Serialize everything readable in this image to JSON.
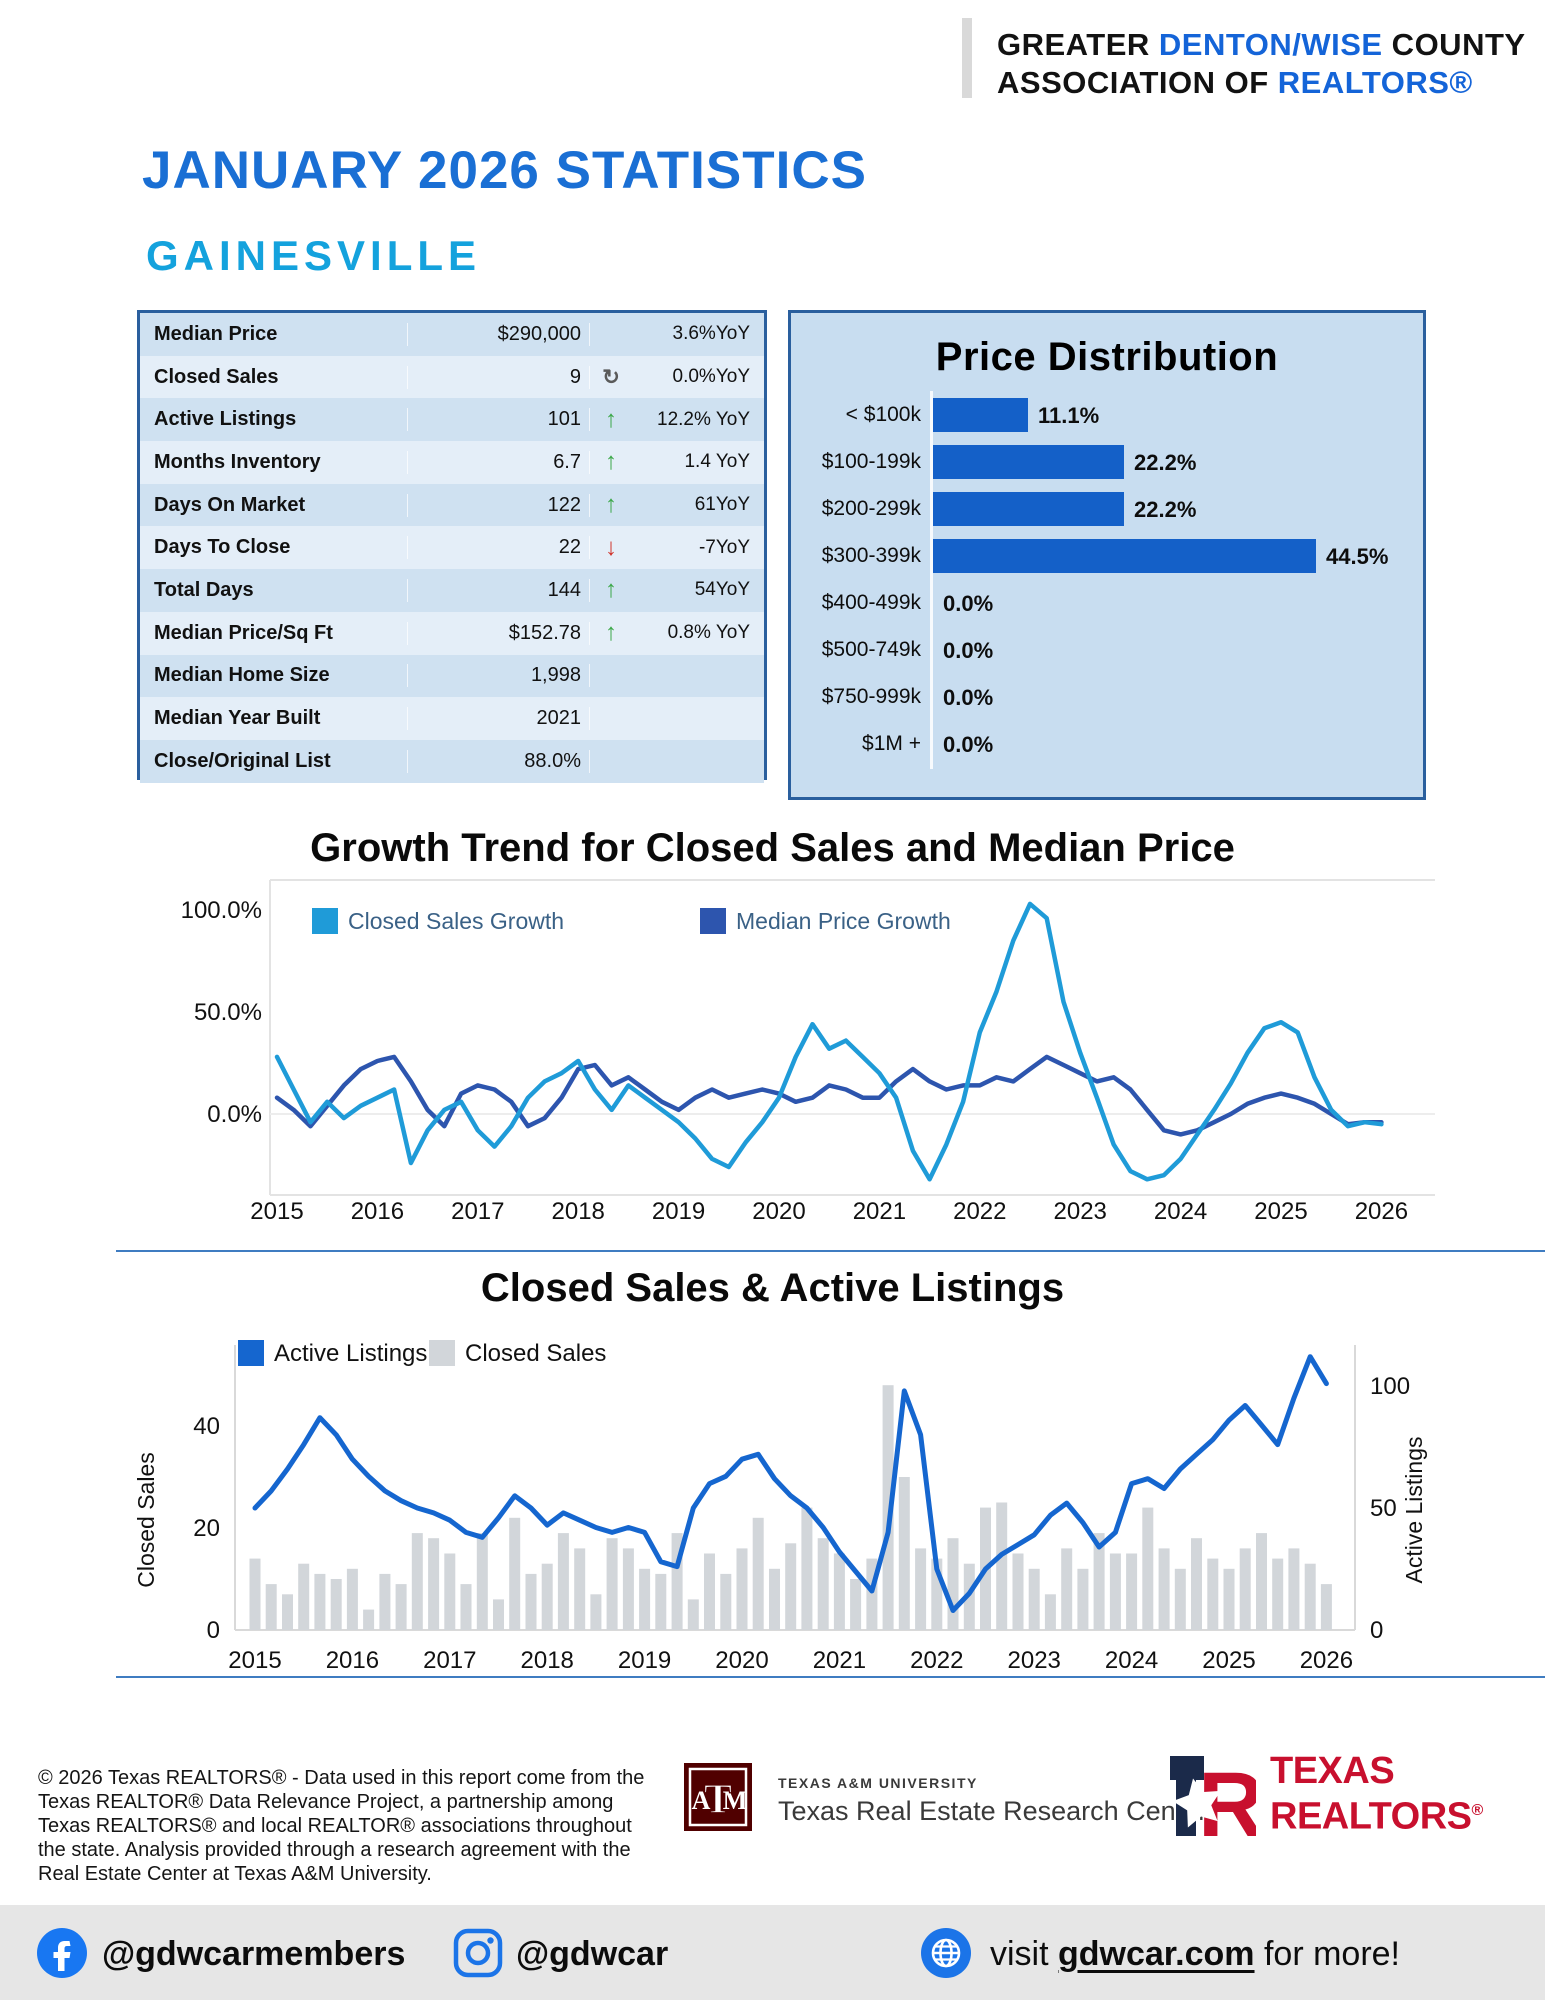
{
  "header": {
    "line1_prefix": "GREATER ",
    "line1_highlight": "DENTON/WISE",
    "line1_suffix": " COUNTY",
    "line2_prefix": "ASSOCIATION OF ",
    "line2_highlight": "REALTORS®"
  },
  "page_title": "JANUARY 2026 STATISTICS",
  "city": "GAINESVILLE",
  "stats_table": {
    "rows": [
      {
        "label": "Median Price",
        "value": "$290,000",
        "trend": "none",
        "yoy": "3.6%YoY"
      },
      {
        "label": "Closed Sales",
        "value": "9",
        "trend": "flat",
        "yoy": "0.0%YoY"
      },
      {
        "label": "Active Listings",
        "value": "101",
        "trend": "up",
        "yoy": "12.2% YoY"
      },
      {
        "label": "Months Inventory",
        "value": "6.7",
        "trend": "up",
        "yoy": "1.4 YoY"
      },
      {
        "label": "Days On Market",
        "value": "122",
        "trend": "up",
        "yoy": "61YoY"
      },
      {
        "label": "Days To Close",
        "value": "22",
        "trend": "down",
        "yoy": "-7YoY"
      },
      {
        "label": "Total Days",
        "value": "144",
        "trend": "up",
        "yoy": "54YoY"
      },
      {
        "label": "Median Price/Sq Ft",
        "value": "$152.78",
        "trend": "up",
        "yoy": "0.8% YoY"
      },
      {
        "label": "Median Home Size",
        "value": "1,998",
        "trend": "none",
        "yoy": ""
      },
      {
        "label": "Median Year Built",
        "value": "2021",
        "trend": "none",
        "yoy": ""
      },
      {
        "label": "Close/Original List",
        "value": "88.0%",
        "trend": "none",
        "yoy": ""
      }
    ]
  },
  "chart_data": [
    {
      "id": "price_distribution",
      "type": "bar",
      "title": "Price Distribution",
      "orientation": "horizontal",
      "categories": [
        "< $100k",
        "$100-199k",
        "$200-299k",
        "$300-399k",
        "$400-499k",
        "$500-749k",
        "$750-999k",
        "$1M +"
      ],
      "values": [
        11.1,
        22.2,
        22.2,
        44.5,
        0.0,
        0.0,
        0.0,
        0.0
      ],
      "labels": [
        "11.1%",
        "22.2%",
        "22.2%",
        "44.5%",
        "0.0%",
        "0.0%",
        "0.0%",
        "0.0%"
      ],
      "bar_color": "#1460c8",
      "xlim": [
        0,
        50
      ]
    },
    {
      "id": "growth",
      "type": "line",
      "title": "Growth Trend for Closed Sales and Median Price",
      "x_start": 2015,
      "x_step_months": 2,
      "x_ticks": [
        2015,
        2016,
        2017,
        2018,
        2019,
        2020,
        2021,
        2022,
        2023,
        2024,
        2025,
        2026
      ],
      "y_tick_labels": [
        "100.0%",
        "50.0%",
        "0.0%"
      ],
      "y_tick_values": [
        100,
        50,
        0
      ],
      "ylim": [
        -40,
        115
      ],
      "grid": "zero-line",
      "legend_position": "top-left",
      "series": [
        {
          "name": "Median Price Growth",
          "color": "#2d55ae",
          "values": [
            8,
            2,
            -6,
            4,
            14,
            22,
            26,
            28,
            16,
            2,
            -6,
            10,
            14,
            12,
            6,
            -6,
            -2,
            8,
            22,
            24,
            14,
            18,
            12,
            6,
            2,
            8,
            12,
            8,
            10,
            12,
            10,
            6,
            8,
            14,
            12,
            8,
            8,
            16,
            22,
            16,
            12,
            14,
            14,
            18,
            16,
            22,
            28,
            24,
            20,
            16,
            18,
            12,
            2,
            -8,
            -10,
            -8,
            -4,
            0,
            5,
            8,
            10,
            8,
            5,
            0,
            -5,
            -4,
            -4
          ]
        },
        {
          "name": "Closed Sales Growth",
          "color": "#1f9bd8",
          "values": [
            28,
            12,
            -4,
            6,
            -2,
            4,
            8,
            12,
            -24,
            -8,
            2,
            6,
            -8,
            -16,
            -6,
            8,
            16,
            20,
            26,
            12,
            2,
            14,
            8,
            2,
            -4,
            -12,
            -22,
            -26,
            -14,
            -4,
            8,
            28,
            44,
            32,
            36,
            28,
            20,
            8,
            -18,
            -32,
            -15,
            6,
            40,
            60,
            85,
            103,
            96,
            55,
            30,
            8,
            -15,
            -28,
            -32,
            -30,
            -22,
            -10,
            2,
            15,
            30,
            42,
            45,
            40,
            18,
            2,
            -6,
            -4,
            -5
          ]
        }
      ]
    },
    {
      "id": "sales_listings",
      "type": "bar",
      "subtype": "bar+line dual axis",
      "title": "Closed Sales & Active Listings",
      "x_start": 2015,
      "x_step_months": 2,
      "x_ticks": [
        2015,
        2016,
        2017,
        2018,
        2019,
        2020,
        2021,
        2022,
        2023,
        2024,
        2025,
        2026
      ],
      "left_axis": {
        "label": "Closed Sales",
        "ticks": [
          0,
          20,
          40
        ],
        "lim": [
          0,
          56
        ]
      },
      "right_axis": {
        "label": "Active Listings",
        "ticks": [
          0,
          50,
          100
        ],
        "lim": [
          0,
          117
        ]
      },
      "legend_position": "top-left",
      "series": [
        {
          "name": "Active Listings",
          "render": "line",
          "axis": "right",
          "color": "#1566cf",
          "values": [
            50,
            57,
            66,
            76,
            87,
            80,
            70,
            63,
            57,
            53,
            50,
            48,
            45,
            40,
            38,
            46,
            55,
            50,
            43,
            48,
            45,
            42,
            40,
            42,
            40,
            28,
            26,
            50,
            60,
            63,
            70,
            72,
            62,
            55,
            50,
            42,
            32,
            24,
            16,
            40,
            98,
            80,
            25,
            8,
            15,
            25,
            31,
            35,
            39,
            47,
            52,
            44,
            34,
            40,
            60,
            62,
            58,
            66,
            72,
            78,
            86,
            92,
            84,
            76,
            95,
            112,
            101
          ]
        },
        {
          "name": "Closed Sales",
          "render": "bar",
          "axis": "left",
          "color": "#d2d6da",
          "values": [
            14,
            9,
            7,
            13,
            11,
            10,
            12,
            4,
            11,
            9,
            19,
            18,
            15,
            9,
            19,
            6,
            22,
            11,
            13,
            19,
            16,
            7,
            18,
            16,
            12,
            11,
            19,
            6,
            15,
            11,
            16,
            22,
            12,
            17,
            24,
            18,
            15,
            10,
            14,
            48,
            30,
            16,
            14,
            18,
            13,
            24,
            25,
            15,
            12,
            7,
            16,
            12,
            19,
            15,
            15,
            24,
            16,
            12,
            18,
            14,
            12,
            16,
            19,
            14,
            16,
            13,
            9
          ]
        }
      ]
    }
  ],
  "footer": {
    "disclaimer": "© 2026 Texas REALTORS® - Data used in this report come from the\nTexas REALTOR® Data Relevance Project, a partnership among\nTexas REALTORS® and local REALTOR® associations throughout\nthe state. Analysis provided through a research agreement with the\nReal Estate Center at Texas A&M University.",
    "tamu": {
      "monogram": "ATM",
      "university": "TEXAS A&M UNIVERSITY",
      "center": "Texas Real Estate Research Center",
      "maroon": "#500000"
    },
    "txr": {
      "line1": "TEXAS",
      "line2": "REALTORS",
      "reg": "®",
      "red": "#c8102e",
      "navy": "#1b2a4a"
    }
  },
  "bottom_bar": {
    "facebook_handle": "@gdwcarmembers",
    "instagram_handle": "@gdwcar",
    "visit_prefix": "visit ",
    "visit_link": "gdwcar.com",
    "visit_suffix": " for more!",
    "icon_blue": "#1b74e8"
  }
}
